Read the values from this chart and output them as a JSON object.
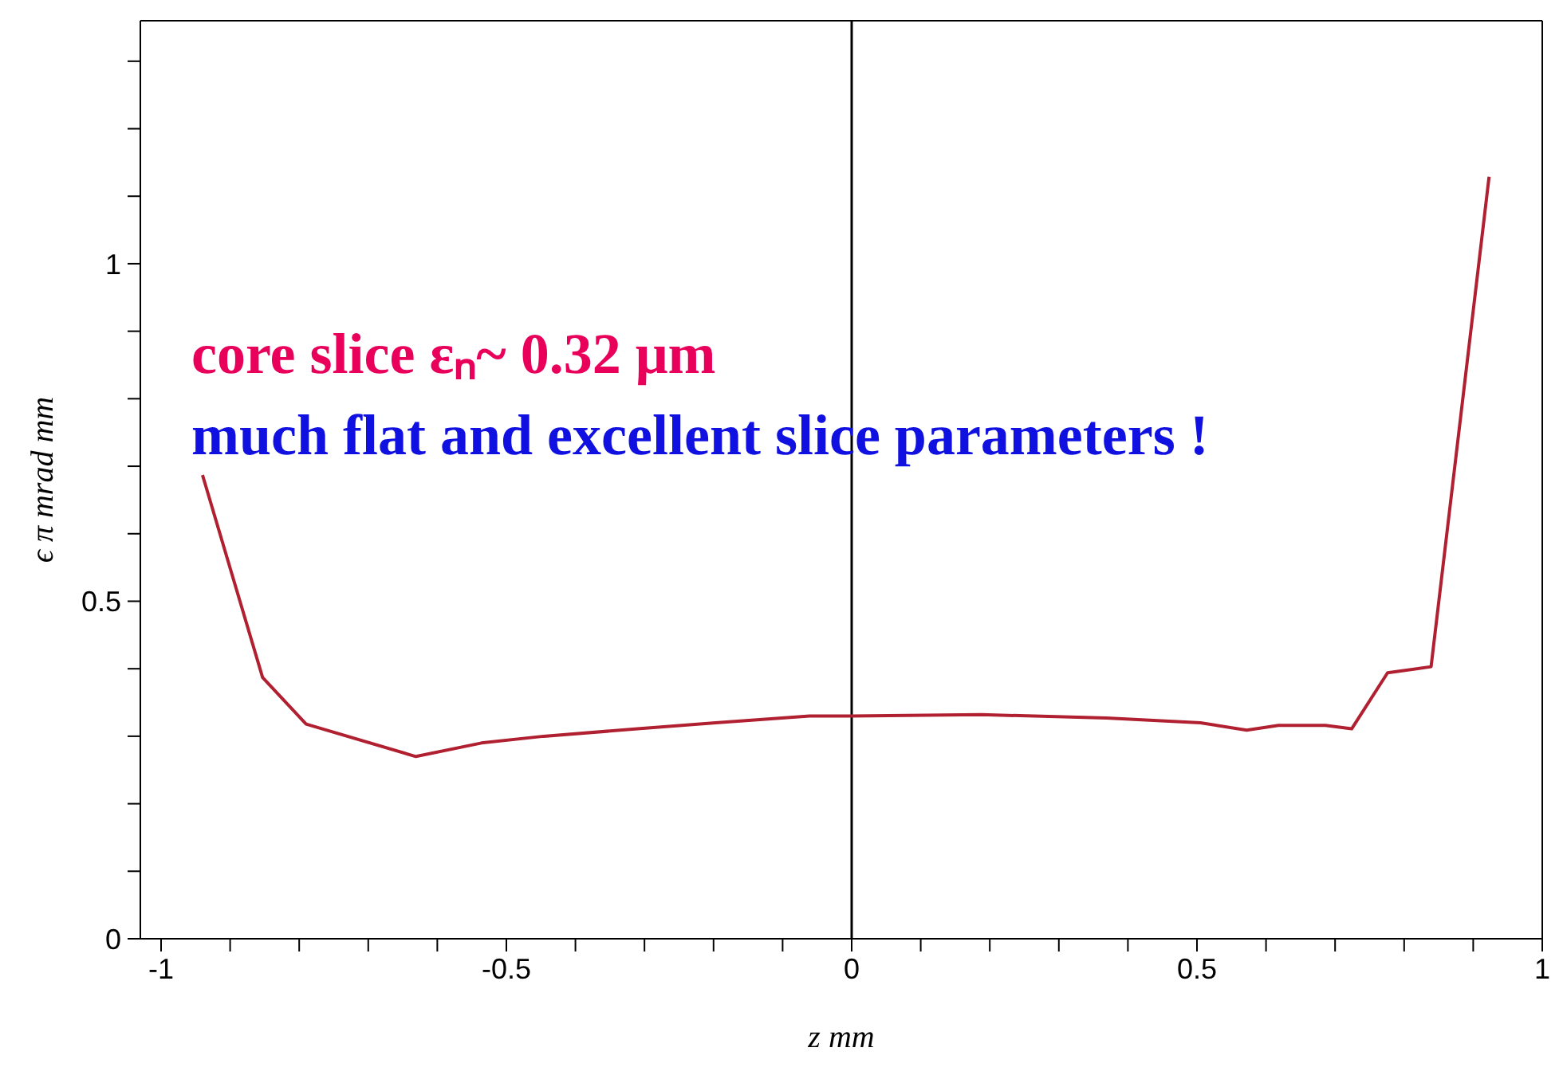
{
  "chart_data": {
    "type": "line",
    "xlabel": "z mm",
    "ylabel": "ϵ π mrad mm",
    "x": [
      -0.94,
      -0.853,
      -0.79,
      -0.631,
      -0.536,
      -0.446,
      -0.31,
      -0.197,
      -0.061,
      0,
      0.188,
      0.369,
      0.505,
      0.572,
      0.618,
      0.686,
      0.724,
      0.776,
      0.839,
      0.923
    ],
    "series": [
      {
        "color": "#b02030",
        "values": [
          0.687,
          0.387,
          0.318,
          0.27,
          0.29,
          0.3,
          0.311,
          0.32,
          0.33,
          0.33,
          0.332,
          0.327,
          0.32,
          0.309,
          0.316,
          0.316,
          0.311,
          0.394,
          0.403,
          1.129
        ]
      }
    ],
    "xlim": [
      -1.03,
      1.0
    ],
    "ylim": [
      0,
      1.36
    ],
    "xticks": [
      -1,
      {
        "value": -0.9,
        "label": null
      },
      {
        "value": -0.8,
        "label": null
      },
      {
        "value": -0.7,
        "label": null
      },
      {
        "value": -0.6,
        "label": null
      },
      -0.5,
      {
        "value": -0.4,
        "label": null
      },
      {
        "value": -0.3,
        "label": null
      },
      {
        "value": -0.2,
        "label": null
      },
      {
        "value": -0.1,
        "label": null
      },
      0,
      {
        "value": 0.1,
        "label": null
      },
      {
        "value": 0.2,
        "label": null
      },
      {
        "value": 0.3,
        "label": null
      },
      {
        "value": 0.4,
        "label": null
      },
      0.5,
      {
        "value": 0.6,
        "label": null
      },
      {
        "value": 0.7,
        "label": null
      },
      {
        "value": 0.8,
        "label": null
      },
      {
        "value": 0.9,
        "label": null
      },
      1
    ],
    "yticks": [
      0,
      {
        "value": 0.1,
        "label": null
      },
      {
        "value": 0.2,
        "label": null
      },
      {
        "value": 0.3,
        "label": null
      },
      {
        "value": 0.4,
        "label": null
      },
      0.5,
      {
        "value": 0.6,
        "label": null
      },
      {
        "value": 0.7,
        "label": null
      },
      {
        "value": 0.8,
        "label": null
      },
      {
        "value": 0.9,
        "label": null
      },
      1,
      {
        "value": 1.1,
        "label": null
      },
      {
        "value": 1.2,
        "label": null
      },
      {
        "value": 1.3,
        "label": null
      }
    ],
    "ref_lines": [
      {
        "axis": "x",
        "value": 0,
        "color": "#000000"
      }
    ],
    "annotations": [
      "core slice εₙ~ 0.32 μm",
      "much flat and excellent slice parameters !"
    ],
    "grid": false,
    "legend": false,
    "marker": "none",
    "line_style": "solid"
  }
}
